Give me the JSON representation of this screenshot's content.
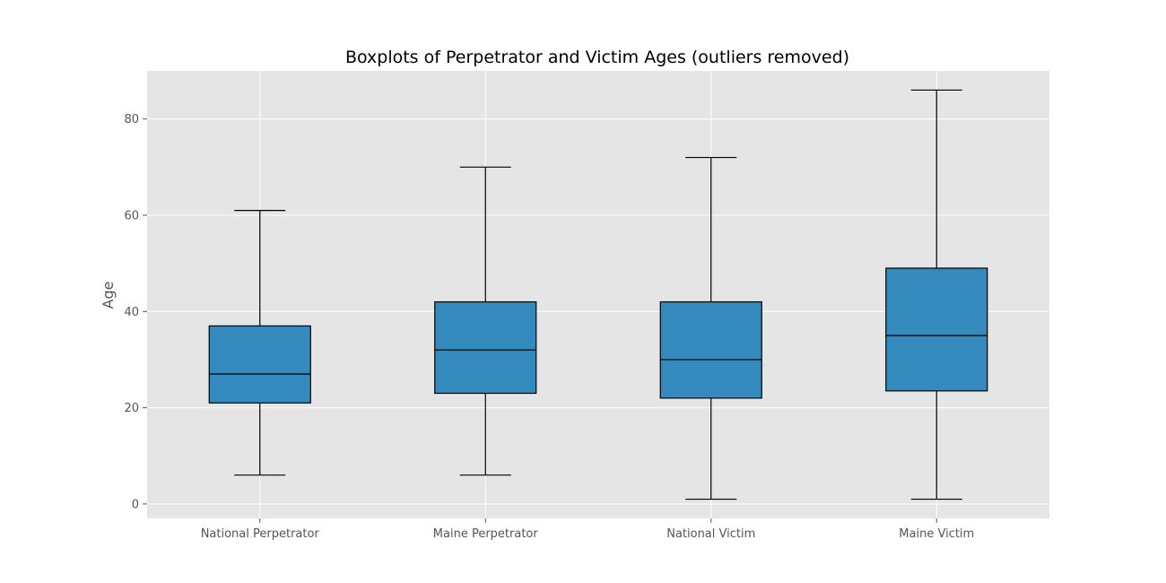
{
  "chart_data": {
    "type": "boxplot",
    "title": "Boxplots of Perpetrator and Victim Ages (outliers removed)",
    "xlabel": "",
    "ylabel": "Age",
    "ylim": [
      -3,
      90
    ],
    "yticks": [
      0,
      20,
      40,
      60,
      80
    ],
    "grid": true,
    "colors": {
      "background": "#e5e5e5",
      "box_fill": "#348abd",
      "grid": "#ffffff",
      "edge": "#000000"
    },
    "categories": [
      "National Perpetrator",
      "Maine Perpetrator",
      "National Victim",
      "Maine Victim"
    ],
    "boxes": [
      {
        "label": "National Perpetrator",
        "whislo": 6,
        "q1": 21,
        "median": 27,
        "q3": 37,
        "whishi": 61
      },
      {
        "label": "Maine Perpetrator",
        "whislo": 6,
        "q1": 23,
        "median": 32,
        "q3": 42,
        "whishi": 70
      },
      {
        "label": "National Victim",
        "whislo": 1,
        "q1": 22,
        "median": 30,
        "q3": 42,
        "whishi": 72
      },
      {
        "label": "Maine Victim",
        "whislo": 1,
        "q1": 23.5,
        "median": 35,
        "q3": 49,
        "whishi": 86
      }
    ]
  }
}
